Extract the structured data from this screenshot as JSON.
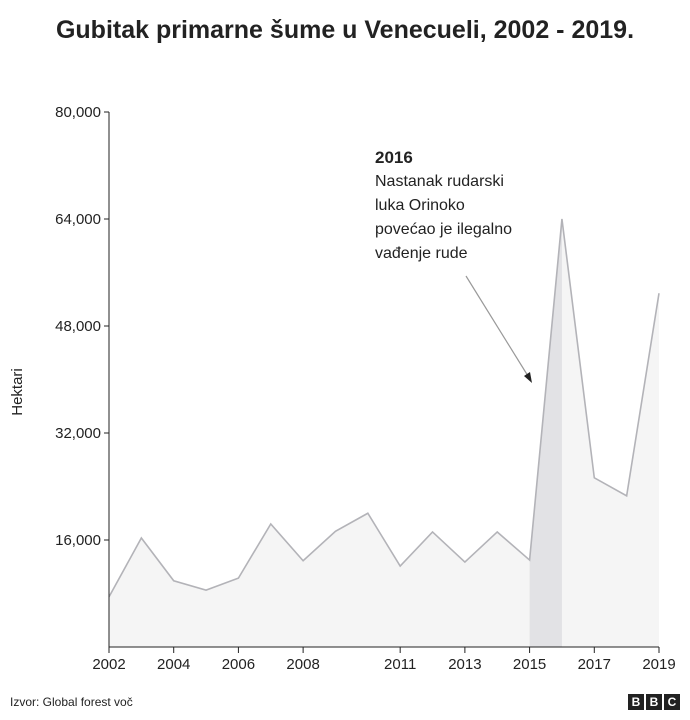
{
  "chart_data": {
    "type": "area",
    "title": "Gubitak primarne šume u Venecueli, 2002 - 2019.",
    "xlabel": "",
    "ylabel": "Hektari",
    "ylim": [
      0,
      80000
    ],
    "yticks": [
      16000,
      32000,
      48000,
      64000,
      80000
    ],
    "ytick_labels": [
      "16,000",
      "32,000",
      "48,000",
      "64,000",
      "80,000"
    ],
    "xticks": [
      2002,
      2004,
      2006,
      2008,
      2011,
      2013,
      2015,
      2017,
      2019
    ],
    "x": [
      2002,
      2003,
      2004,
      2005,
      2006,
      2007,
      2008,
      2009,
      2010,
      2011,
      2012,
      2013,
      2014,
      2015,
      2016,
      2017,
      2018,
      2019
    ],
    "values": [
      7500,
      16300,
      9900,
      8500,
      10300,
      18400,
      12900,
      17300,
      20000,
      12100,
      17200,
      12700,
      17200,
      13000,
      64000,
      25300,
      22600,
      52900
    ],
    "highlight": [
      2015,
      2016
    ],
    "grid": false,
    "colors": {
      "line": "#b3b3b8",
      "fill": "#f5f5f5",
      "highlight": "#e2e2e5",
      "axis": "#222222"
    },
    "annotation": {
      "title": "2016",
      "lines": [
        "Nastanak rudarski",
        "luka Orinoko",
        "povećao je ilegalno",
        "vađenje rude"
      ]
    }
  },
  "footer": {
    "source": "Izvor: Global forest voč",
    "logo": [
      "B",
      "B",
      "C"
    ]
  }
}
